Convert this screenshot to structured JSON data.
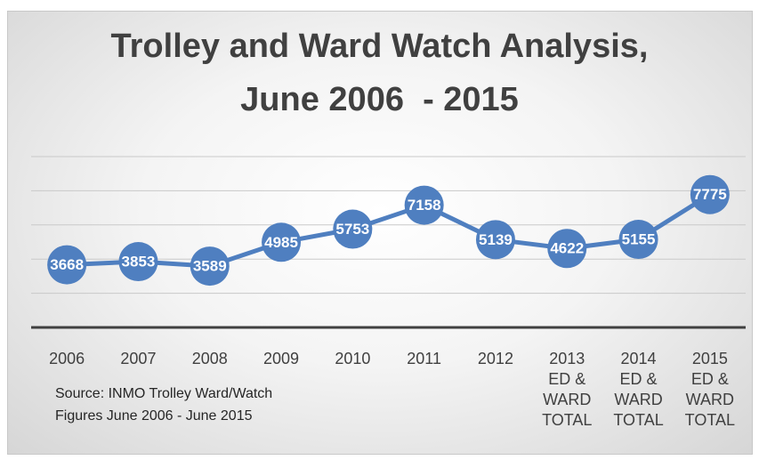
{
  "chart_data": {
    "type": "line",
    "title": "Trolley and Ward Watch Analysis,\nJune 2006  - 2015",
    "annotation": "Source: INMO Trolley Ward/Watch\nFigures June 2006 - June 2015",
    "categories": [
      "2006",
      "2007",
      "2008",
      "2009",
      "2010",
      "2011",
      "2012",
      "2013\nED &\nWARD\nTOTAL",
      "2014\nED &\nWARD\nTOTAL",
      "2015\nED &\nWARD\nTOTAL"
    ],
    "values": [
      3668,
      3853,
      3589,
      4985,
      5753,
      7158,
      5139,
      4622,
      5155,
      7775
    ],
    "color": "#4f7fc0",
    "ylim": [
      0,
      10000
    ],
    "yticks": [
      0,
      2000,
      4000,
      6000,
      8000,
      10000
    ],
    "grid": true
  }
}
